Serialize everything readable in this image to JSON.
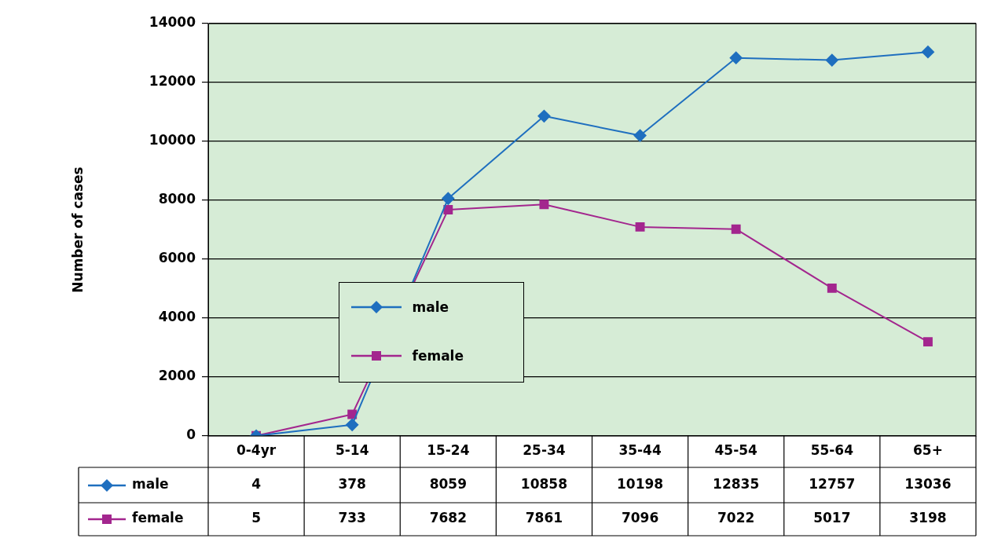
{
  "chart_data": {
    "type": "line",
    "ylabel": "Number of cases",
    "categories": [
      "0-4yr",
      "5-14",
      "15-24",
      "25-34",
      "35-44",
      "45-54",
      "55-64",
      "65+"
    ],
    "series": [
      {
        "name": "male",
        "color": "#1f6fbf",
        "marker": "diamond",
        "values": [
          4,
          378,
          8059,
          10858,
          10198,
          12835,
          12757,
          13036
        ]
      },
      {
        "name": "female",
        "color": "#a3268e",
        "marker": "square",
        "values": [
          5,
          733,
          7682,
          7861,
          7096,
          7022,
          5017,
          3198
        ]
      }
    ],
    "ylim": [
      0,
      14000
    ],
    "yticks": [
      0,
      2000,
      4000,
      6000,
      8000,
      10000,
      12000,
      14000
    ],
    "grid": "y",
    "legend": "center",
    "data_labels": true
  }
}
